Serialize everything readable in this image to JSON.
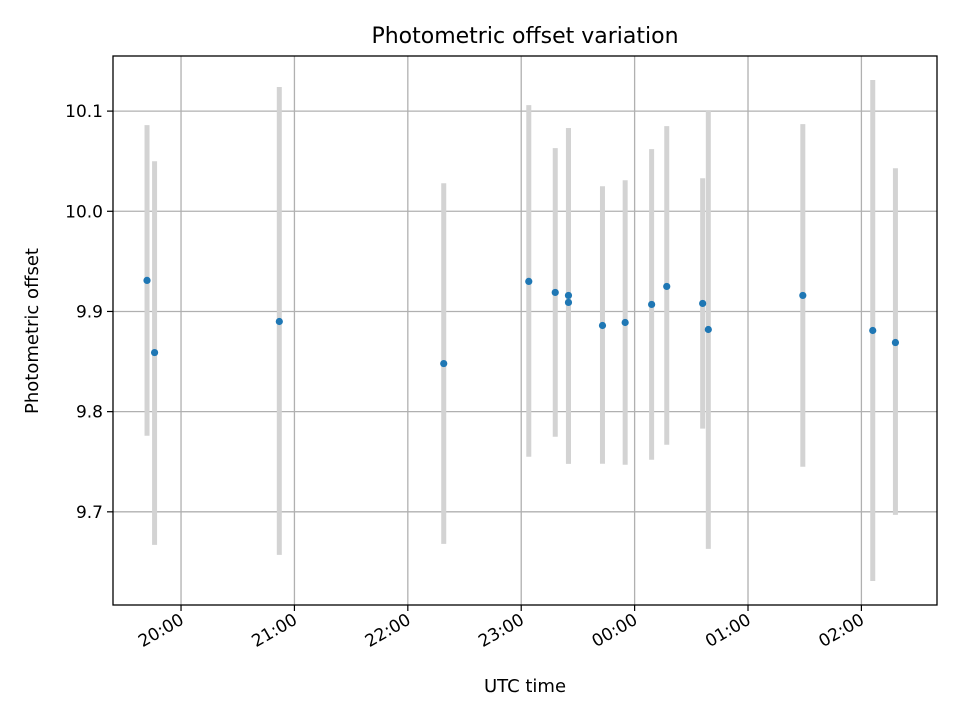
{
  "chart_data": {
    "type": "scatter",
    "title": "Photometric offset variation",
    "xlabel": "UTC time",
    "ylabel": "Photometric offset",
    "x_axis": {
      "type": "time",
      "range": [
        "19:24",
        "02:40"
      ],
      "ticks": [
        "20:00",
        "21:00",
        "22:00",
        "23:00",
        "00:00",
        "01:00",
        "02:00"
      ]
    },
    "y_axis": {
      "range": [
        9.607,
        10.155
      ],
      "ticks": [
        "9.7",
        "9.8",
        "9.9",
        "10.0",
        "10.1"
      ]
    },
    "grid": true,
    "marker_color": "#1f77b4",
    "errorbar_color": "#d3d3d3",
    "points": [
      {
        "x": "19:42",
        "y": 9.931,
        "yerr_low": 9.776,
        "yerr_high": 10.086
      },
      {
        "x": "19:46",
        "y": 9.859,
        "yerr_low": 9.667,
        "yerr_high": 10.05
      },
      {
        "x": "20:52",
        "y": 9.89,
        "yerr_low": 9.657,
        "yerr_high": 10.124
      },
      {
        "x": "22:19",
        "y": 9.848,
        "yerr_low": 9.668,
        "yerr_high": 10.028
      },
      {
        "x": "23:04",
        "y": 9.93,
        "yerr_low": 9.755,
        "yerr_high": 10.106
      },
      {
        "x": "23:18",
        "y": 9.919,
        "yerr_low": 9.775,
        "yerr_high": 10.063
      },
      {
        "x": "23:25",
        "y": 9.916,
        "yerr_low": 9.748,
        "yerr_high": 10.083
      },
      {
        "x": "23:25",
        "y": 9.909,
        "yerr_low": 9.748,
        "yerr_high": 10.083
      },
      {
        "x": "23:43",
        "y": 9.886,
        "yerr_low": 9.748,
        "yerr_high": 10.025
      },
      {
        "x": "23:55",
        "y": 9.889,
        "yerr_low": 9.747,
        "yerr_high": 10.031
      },
      {
        "x": "00:09",
        "y": 9.907,
        "yerr_low": 9.752,
        "yerr_high": 10.062
      },
      {
        "x": "00:17",
        "y": 9.925,
        "yerr_low": 9.767,
        "yerr_high": 10.085
      },
      {
        "x": "00:36",
        "y": 9.908,
        "yerr_low": 9.783,
        "yerr_high": 10.033
      },
      {
        "x": "00:39",
        "y": 9.882,
        "yerr_low": 9.663,
        "yerr_high": 10.101
      },
      {
        "x": "01:29",
        "y": 9.916,
        "yerr_low": 9.745,
        "yerr_high": 10.087
      },
      {
        "x": "02:06",
        "y": 9.881,
        "yerr_low": 9.631,
        "yerr_high": 10.131
      },
      {
        "x": "02:18",
        "y": 9.869,
        "yerr_low": 9.697,
        "yerr_high": 10.043
      }
    ]
  }
}
